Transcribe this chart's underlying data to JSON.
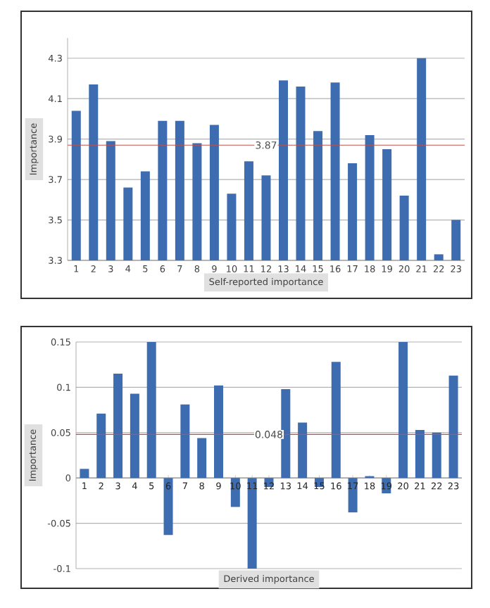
{
  "chart_data": [
    {
      "type": "bar",
      "xlabel": "Self-reported importance",
      "ylabel": "Importance",
      "categories": [
        "1",
        "2",
        "3",
        "4",
        "5",
        "6",
        "7",
        "8",
        "9",
        "10",
        "11",
        "12",
        "13",
        "14",
        "15",
        "16",
        "17",
        "18",
        "19",
        "20",
        "21",
        "22",
        "23"
      ],
      "values": [
        4.04,
        4.17,
        3.89,
        3.66,
        3.74,
        3.99,
        3.99,
        3.88,
        3.97,
        3.63,
        3.79,
        3.72,
        4.19,
        4.16,
        3.94,
        4.18,
        3.78,
        3.92,
        3.85,
        3.62,
        4.3,
        3.33,
        3.5
      ],
      "color": "#3d6cb0",
      "ylim": [
        3.3,
        4.4
      ],
      "yticks": [
        3.3,
        3.5,
        3.7,
        3.9,
        4.1,
        4.3
      ],
      "grid": "y",
      "ref_lines": [
        {
          "axis": "y",
          "value": 3.87,
          "label": "3.87",
          "color": "#c0504d"
        }
      ]
    },
    {
      "type": "bar",
      "xlabel": "Derived importance",
      "ylabel": "Importance",
      "categories": [
        "1",
        "2",
        "3",
        "4",
        "5",
        "6",
        "7",
        "8",
        "9",
        "10",
        "11",
        "12",
        "13",
        "14",
        "15",
        "16",
        "17",
        "18",
        "19",
        "20",
        "21",
        "22",
        "23"
      ],
      "values": [
        0.01,
        0.071,
        0.115,
        0.093,
        0.15,
        -0.063,
        0.081,
        0.044,
        0.102,
        -0.032,
        -0.1,
        -0.01,
        0.098,
        0.061,
        -0.01,
        0.128,
        -0.038,
        0.002,
        -0.017,
        0.15,
        0.053,
        0.05,
        0.113
      ],
      "color": "#3d6cb0",
      "ylim": [
        -0.1,
        0.15
      ],
      "yticks": [
        -0.1,
        -0.05,
        0,
        0.05,
        0.1,
        0.15
      ],
      "grid": "y",
      "ref_lines": [
        {
          "axis": "y",
          "value": 0.048,
          "label": "0.048",
          "color": "#c0504d"
        }
      ]
    }
  ]
}
